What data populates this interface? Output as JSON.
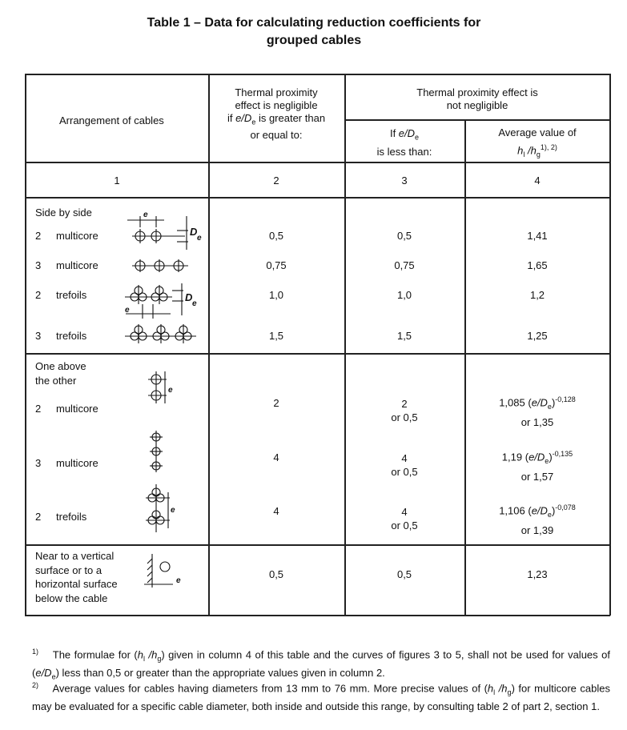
{
  "title": {
    "line1": "Table 1 – Data for calculating reduction coefficients for",
    "line2": "grouped cables"
  },
  "header": {
    "col1": "Arrangement of cables",
    "col2": [
      "Thermal proximity",
      "effect is negligible",
      "if",
      "e/D",
      "e",
      " is greater than",
      "or equal to:"
    ],
    "col34": [
      "Thermal proximity effect is",
      "not negligible"
    ],
    "col3": [
      "If ",
      "e/D",
      "e",
      "is less than:"
    ],
    "col4": [
      "Average value of",
      "h",
      "l",
      " /h",
      "g",
      "1), 2)"
    ],
    "numbers": [
      "1",
      "2",
      "3",
      "4"
    ]
  },
  "side_by_side": {
    "heading": "Side by side",
    "rows": [
      {
        "count": "2",
        "type": "multicore",
        "col2": "0,5",
        "col3": "0,5",
        "col4": "1,41"
      },
      {
        "count": "3",
        "type": "multicore",
        "col2": "0,75",
        "col3": "0,75",
        "col4": "1,65"
      },
      {
        "count": "2",
        "type": "trefoils",
        "col2": "1,0",
        "col3": "1,0",
        "col4": "1,2"
      },
      {
        "count": "3",
        "type": "trefoils",
        "col2": "1,5",
        "col3": "1,5",
        "col4": "1,25"
      }
    ]
  },
  "one_above": {
    "heading": [
      "One above",
      "the other"
    ],
    "rows": [
      {
        "count": "2",
        "type": "multicore",
        "col2": "2",
        "col3": "2",
        "col3_alt": "or 0,5",
        "coef": "1,085",
        "exp": "-0,128",
        "col4_alt": "or 1,35"
      },
      {
        "count": "3",
        "type": "multicore",
        "col2": "4",
        "col3": "4",
        "col3_alt": "or 0,5",
        "coef": "1,19",
        "exp": "-0,135",
        "col4_alt": "or 1,57"
      },
      {
        "count": "2",
        "type": "trefoils",
        "col2": "4",
        "col3": "4",
        "col3_alt": "or 0,5",
        "coef": "1,106",
        "exp": "-0,078",
        "col4_alt": "or 1,39"
      }
    ],
    "formula": {
      "open": " (",
      "e": "e/D",
      "sub": "e",
      "close": ")"
    }
  },
  "near_surface": {
    "heading": [
      "Near to a vertical",
      "surface or to a",
      "horizontal surface",
      "below the cable"
    ],
    "col2": "0,5",
    "col3": "0,5",
    "col4": "1,23"
  },
  "diagram_labels": {
    "e": "e",
    "D": "D",
    "De_sub": "e"
  },
  "footnotes": [
    {
      "mark": "1)",
      "parts": [
        "The formulae for (",
        "h",
        "l",
        " /h",
        "g",
        ") given in column 4 of this table and the curves of figures 3 to 5, shall not be used for values of (",
        "e/D",
        "e",
        ") less than 0,5 or greater than the appropriate values given in column 2."
      ]
    },
    {
      "mark": "2)",
      "parts": [
        "Average values for cables having diameters from 13 mm to 76 mm. More precise values of (",
        "h",
        "l",
        " /h",
        "g",
        ") for multicore cables may be evaluated for a specific cable diameter, both inside and outside this range, by consulting table 2 of part 2, section 1."
      ]
    }
  ]
}
